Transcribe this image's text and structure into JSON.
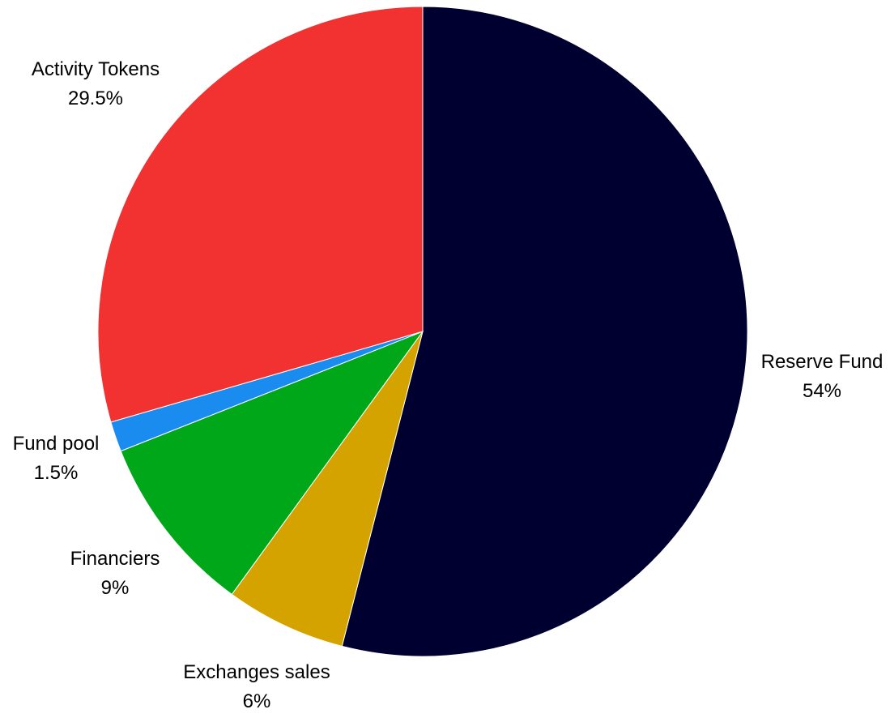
{
  "chart_data": {
    "type": "pie",
    "title": "",
    "start_angle_deg": 0,
    "direction": "clockwise",
    "slices": [
      {
        "label": "Reserve Fund",
        "value": 54,
        "display": "54%",
        "color": "#000030"
      },
      {
        "label": "Exchanges sales",
        "value": 6,
        "display": "6%",
        "color": "#d4a300"
      },
      {
        "label": "Financiers",
        "value": 9,
        "display": "9%",
        "color": "#00a819"
      },
      {
        "label": "Fund pool",
        "value": 1.5,
        "display": "1.5%",
        "color": "#1a8cf0"
      },
      {
        "label": "Activity Tokens",
        "value": 29.5,
        "display": "29.5%",
        "color": "#f23131"
      }
    ]
  }
}
